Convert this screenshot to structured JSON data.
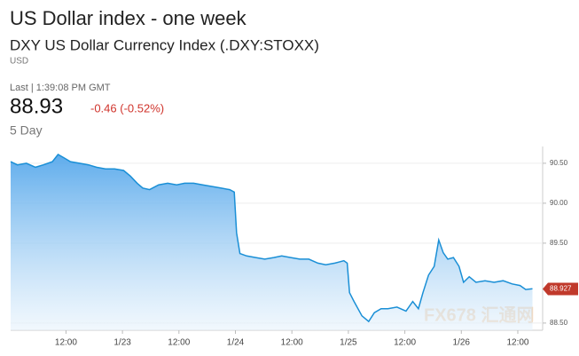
{
  "header": {
    "title": "US Dollar index - one week",
    "subtitle": "DXY US Dollar Currency Index (.DXY:STOXX)",
    "currency": "USD",
    "last": "Last | 1:39:08 PM GMT",
    "price": "88.93",
    "change": "-0.46 (-0.52%)",
    "range": "5 Day"
  },
  "chart_data": {
    "type": "area",
    "x": [
      22.01,
      22.07,
      22.15,
      22.23,
      22.3,
      22.38,
      22.43,
      22.48,
      22.54,
      22.62,
      22.7,
      22.77,
      22.85,
      22.93,
      23.01,
      23.07,
      23.13,
      23.18,
      23.24,
      23.32,
      23.4,
      23.48,
      23.55,
      23.63,
      23.71,
      23.79,
      23.87,
      23.95,
      23.99,
      24.01,
      24.04,
      24.1,
      24.18,
      24.26,
      24.34,
      24.41,
      24.49,
      24.57,
      24.65,
      24.73,
      24.8,
      24.88,
      24.96,
      24.99,
      25.01,
      25.05,
      25.12,
      25.18,
      25.23,
      25.29,
      25.35,
      25.43,
      25.51,
      25.57,
      25.62,
      25.66,
      25.71,
      25.76,
      25.8,
      25.84,
      25.88,
      25.93,
      25.98,
      26.02,
      26.07,
      26.13,
      26.21,
      26.29,
      26.37,
      26.45,
      26.52,
      26.57,
      26.63
    ],
    "series": [
      {
        "name": "DXY",
        "color": "#1a8fd6",
        "values": [
          90.52,
          90.48,
          90.5,
          90.45,
          90.48,
          90.52,
          90.61,
          90.57,
          90.52,
          90.5,
          90.48,
          90.45,
          90.43,
          90.43,
          90.41,
          90.34,
          90.25,
          90.19,
          90.17,
          90.23,
          90.25,
          90.23,
          90.25,
          90.25,
          90.23,
          90.21,
          90.19,
          90.17,
          90.14,
          89.63,
          89.37,
          89.34,
          89.32,
          89.3,
          89.32,
          89.34,
          89.32,
          89.3,
          89.3,
          89.25,
          89.23,
          89.25,
          89.28,
          89.25,
          88.88,
          88.77,
          88.59,
          88.52,
          88.63,
          88.68,
          88.68,
          88.7,
          88.65,
          88.77,
          88.68,
          88.88,
          89.1,
          89.21,
          89.54,
          89.38,
          89.3,
          89.32,
          89.21,
          89.01,
          89.08,
          89.01,
          89.03,
          89.01,
          89.03,
          88.99,
          88.97,
          88.92,
          88.93
        ]
      }
    ],
    "last_value": 88.927,
    "last_color": "#c0392b",
    "xlim": [
      22.01,
      26.72
    ],
    "xticks": [
      {
        "value": 22.5,
        "label": "12:00"
      },
      {
        "value": 23,
        "label": "1/23"
      },
      {
        "value": 23.5,
        "label": "12:00"
      },
      {
        "value": 24,
        "label": "1/24"
      },
      {
        "value": 24.5,
        "label": "12:00"
      },
      {
        "value": 25,
        "label": "1/25"
      },
      {
        "value": 25.5,
        "label": "12:00"
      },
      {
        "value": 26,
        "label": "1/26"
      },
      {
        "value": 26.5,
        "label": "12:00"
      }
    ],
    "ylim": [
      88.41,
      90.71
    ],
    "yticks": [
      {
        "value": 88.5,
        "label": "88.50"
      },
      {
        "value": 89.5,
        "label": "89.50"
      },
      {
        "value": 90,
        "label": "90.00"
      },
      {
        "value": 90.5,
        "label": "90.50"
      }
    ],
    "grid": true,
    "watermark": "FX678 汇通网"
  }
}
